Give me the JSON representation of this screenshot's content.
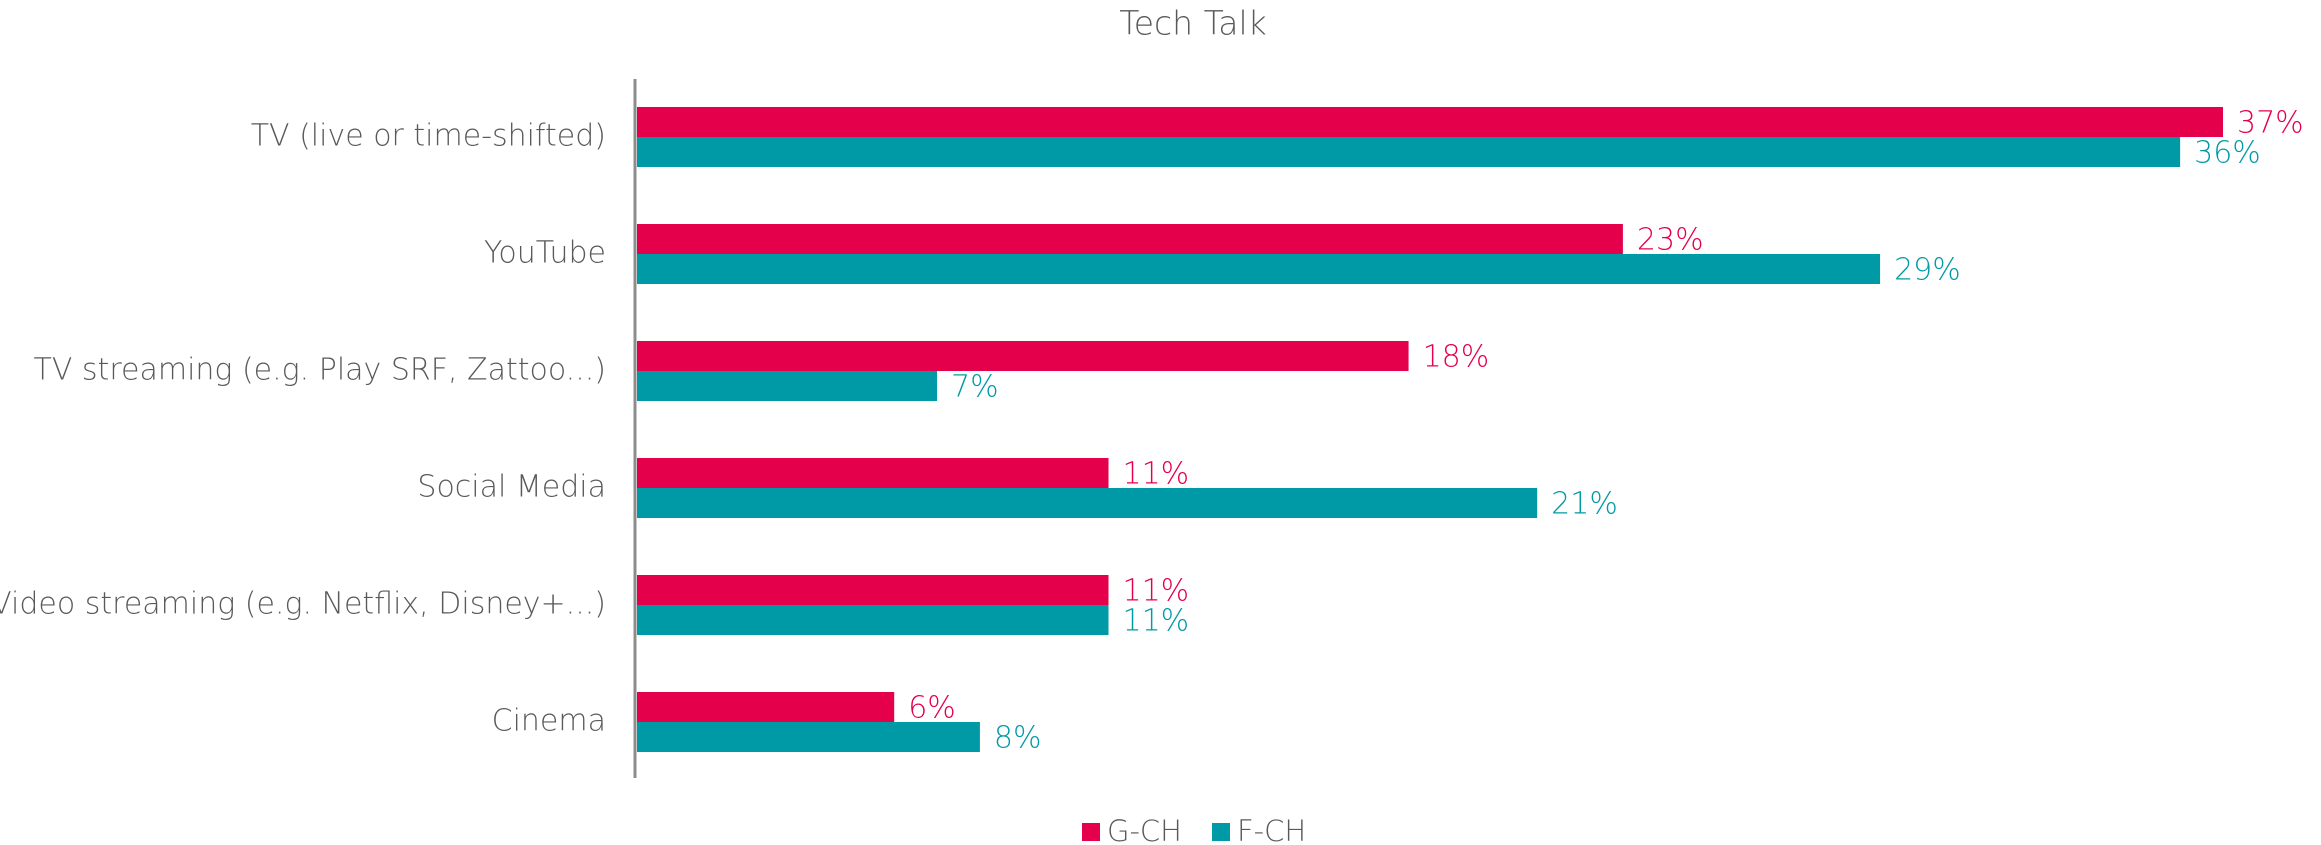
{
  "chart_data": {
    "type": "hbar",
    "title": "Tech Talk",
    "categories": [
      "TV (live or time-shifted)",
      "YouTube",
      "TV streaming (e.g. Play SRF, Zattoo...)",
      "Social Media",
      "Video streaming (e.g. Netflix, Disney+...)",
      "Cinema"
    ],
    "series": [
      {
        "name": "G-CH",
        "color": "#e4004b",
        "values": [
          37,
          23,
          18,
          11,
          11,
          6
        ],
        "value_labels": [
          "37%",
          "23%",
          "18%",
          "11%",
          "11%",
          "6%"
        ]
      },
      {
        "name": "F-CH",
        "color": "#009aa6",
        "values": [
          36,
          29,
          7,
          21,
          11,
          8
        ],
        "value_labels": [
          "36%",
          "29%",
          "7%",
          "21%",
          "11%",
          "8%"
        ]
      }
    ],
    "legend": "bottom"
  }
}
